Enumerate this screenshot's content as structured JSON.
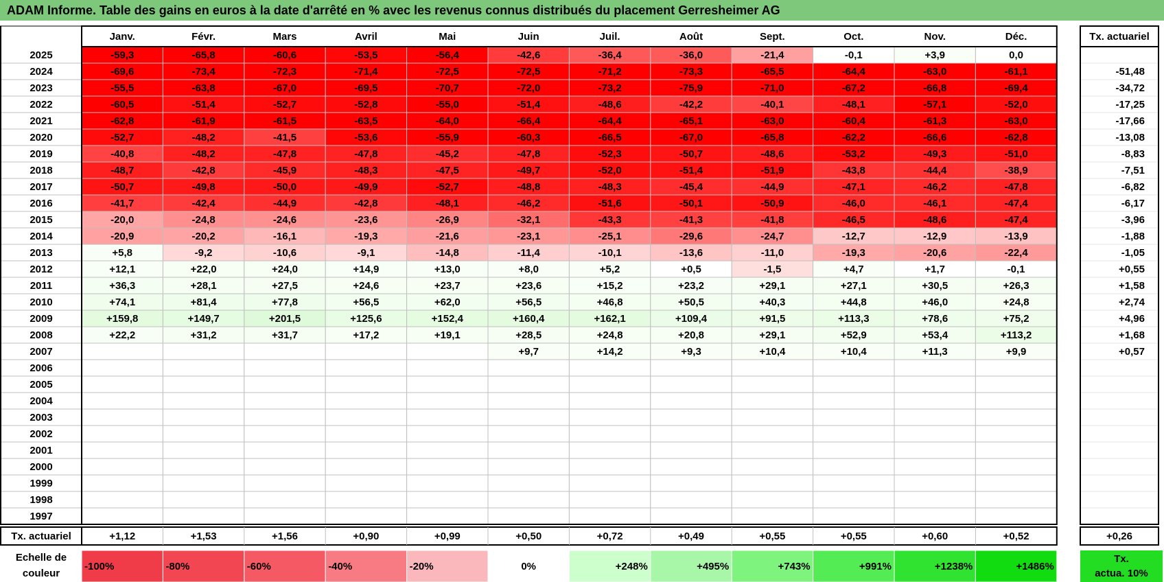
{
  "title": "ADAM Informe. Table des gains en euros à la date d'arrêté en % avec les revenus connus distribués du placement Gerresheimer AG",
  "chart_data": {
    "type": "heatmap",
    "title": "ADAM Informe. Table des gains en euros à la date d'arrêté en % avec les revenus connus distribués du placement Gerresheimer AG",
    "columns": [
      "Janv.",
      "Févr.",
      "Mars",
      "Avril",
      "Mai",
      "Juin",
      "Juil.",
      "Août",
      "Sept.",
      "Oct.",
      "Nov.",
      "Déc."
    ],
    "tx_header": "Tx. actuariel",
    "rows": [
      {
        "year": "2025",
        "values": [
          "-59,3",
          "-65,8",
          "-60,6",
          "-53,5",
          "-56,4",
          "-42,6",
          "-36,4",
          "-36,0",
          "-21,4",
          "-0,1",
          "+3,9",
          "0,0"
        ],
        "tx": ""
      },
      {
        "year": "2024",
        "values": [
          "-69,6",
          "-73,4",
          "-72,3",
          "-71,4",
          "-72,5",
          "-72,5",
          "-71,2",
          "-73,3",
          "-65,5",
          "-64,4",
          "-63,0",
          "-61,1"
        ],
        "tx": "-51,48"
      },
      {
        "year": "2023",
        "values": [
          "-55,5",
          "-63,8",
          "-67,0",
          "-69,5",
          "-70,7",
          "-72,0",
          "-73,2",
          "-75,9",
          "-71,0",
          "-67,2",
          "-66,8",
          "-69,4"
        ],
        "tx": "-34,72"
      },
      {
        "year": "2022",
        "values": [
          "-60,5",
          "-51,4",
          "-52,7",
          "-52,8",
          "-55,0",
          "-51,4",
          "-48,6",
          "-42,2",
          "-40,1",
          "-48,1",
          "-57,1",
          "-52,0"
        ],
        "tx": "-17,25"
      },
      {
        "year": "2021",
        "values": [
          "-62,8",
          "-61,9",
          "-61,5",
          "-63,5",
          "-64,0",
          "-66,4",
          "-64,4",
          "-65,1",
          "-63,0",
          "-60,4",
          "-61,3",
          "-63,0"
        ],
        "tx": "-17,66"
      },
      {
        "year": "2020",
        "values": [
          "-52,7",
          "-48,2",
          "-41,5",
          "-53,6",
          "-55,9",
          "-60,3",
          "-66,5",
          "-67,0",
          "-65,8",
          "-62,2",
          "-66,6",
          "-62,8"
        ],
        "tx": "-13,08"
      },
      {
        "year": "2019",
        "values": [
          "-40,8",
          "-48,2",
          "-47,8",
          "-47,8",
          "-45,2",
          "-47,8",
          "-52,3",
          "-50,7",
          "-48,6",
          "-53,2",
          "-49,3",
          "-51,0"
        ],
        "tx": "-8,83"
      },
      {
        "year": "2018",
        "values": [
          "-48,7",
          "-42,8",
          "-45,9",
          "-48,3",
          "-47,5",
          "-49,7",
          "-52,0",
          "-51,4",
          "-51,9",
          "-43,8",
          "-44,4",
          "-38,9"
        ],
        "tx": "-7,51"
      },
      {
        "year": "2017",
        "values": [
          "-50,7",
          "-49,8",
          "-50,0",
          "-49,9",
          "-52,7",
          "-48,8",
          "-48,3",
          "-45,4",
          "-44,9",
          "-47,1",
          "-46,2",
          "-47,8"
        ],
        "tx": "-6,82"
      },
      {
        "year": "2016",
        "values": [
          "-41,7",
          "-42,4",
          "-44,9",
          "-42,8",
          "-48,1",
          "-46,2",
          "-51,6",
          "-50,1",
          "-50,9",
          "-46,0",
          "-46,1",
          "-47,4"
        ],
        "tx": "-6,17"
      },
      {
        "year": "2015",
        "values": [
          "-20,0",
          "-24,8",
          "-24,6",
          "-23,6",
          "-26,9",
          "-32,1",
          "-43,3",
          "-41,3",
          "-41,8",
          "-46,5",
          "-48,6",
          "-47,4"
        ],
        "tx": "-3,96"
      },
      {
        "year": "2014",
        "values": [
          "-20,9",
          "-20,2",
          "-16,1",
          "-19,3",
          "-21,6",
          "-23,1",
          "-25,1",
          "-29,6",
          "-24,7",
          "-12,7",
          "-12,9",
          "-13,9"
        ],
        "tx": "-1,88"
      },
      {
        "year": "2013",
        "values": [
          "+5,8",
          "-9,2",
          "-10,6",
          "-9,1",
          "-14,8",
          "-11,4",
          "-10,1",
          "-13,6",
          "-11,0",
          "-19,3",
          "-20,6",
          "-22,4"
        ],
        "tx": "-1,05"
      },
      {
        "year": "2012",
        "values": [
          "+12,1",
          "+22,0",
          "+24,0",
          "+14,9",
          "+13,0",
          "+8,0",
          "+5,2",
          "+0,5",
          "-1,5",
          "+4,7",
          "+1,7",
          "-0,1"
        ],
        "tx": "+0,55"
      },
      {
        "year": "2011",
        "values": [
          "+36,3",
          "+28,1",
          "+27,5",
          "+24,6",
          "+23,7",
          "+23,6",
          "+15,2",
          "+23,2",
          "+29,1",
          "+27,1",
          "+30,5",
          "+26,3"
        ],
        "tx": "+1,58"
      },
      {
        "year": "2010",
        "values": [
          "+74,1",
          "+81,4",
          "+77,8",
          "+56,5",
          "+62,0",
          "+56,5",
          "+46,8",
          "+50,5",
          "+40,3",
          "+44,8",
          "+46,0",
          "+24,8"
        ],
        "tx": "+2,74"
      },
      {
        "year": "2009",
        "values": [
          "+159,8",
          "+149,7",
          "+201,5",
          "+125,6",
          "+152,4",
          "+160,4",
          "+162,1",
          "+109,4",
          "+91,5",
          "+113,3",
          "+78,6",
          "+75,2"
        ],
        "tx": "+4,96"
      },
      {
        "year": "2008",
        "values": [
          "+22,2",
          "+31,2",
          "+31,7",
          "+17,2",
          "+19,1",
          "+28,5",
          "+24,8",
          "+20,8",
          "+29,1",
          "+52,9",
          "+53,4",
          "+113,2"
        ],
        "tx": "+1,68"
      },
      {
        "year": "2007",
        "values": [
          "",
          "",
          "",
          "",
          "",
          "+9,7",
          "+14,2",
          "+9,3",
          "+10,4",
          "+10,4",
          "+11,3",
          "+9,9"
        ],
        "tx": "+0,57"
      },
      {
        "year": "2006",
        "values": [
          "",
          "",
          "",
          "",
          "",
          "",
          "",
          "",
          "",
          "",
          "",
          ""
        ],
        "tx": ""
      },
      {
        "year": "2005",
        "values": [
          "",
          "",
          "",
          "",
          "",
          "",
          "",
          "",
          "",
          "",
          "",
          ""
        ],
        "tx": ""
      },
      {
        "year": "2004",
        "values": [
          "",
          "",
          "",
          "",
          "",
          "",
          "",
          "",
          "",
          "",
          "",
          ""
        ],
        "tx": ""
      },
      {
        "year": "2003",
        "values": [
          "",
          "",
          "",
          "",
          "",
          "",
          "",
          "",
          "",
          "",
          "",
          ""
        ],
        "tx": ""
      },
      {
        "year": "2002",
        "values": [
          "",
          "",
          "",
          "",
          "",
          "",
          "",
          "",
          "",
          "",
          "",
          ""
        ],
        "tx": ""
      },
      {
        "year": "2001",
        "values": [
          "",
          "",
          "",
          "",
          "",
          "",
          "",
          "",
          "",
          "",
          "",
          ""
        ],
        "tx": ""
      },
      {
        "year": "2000",
        "values": [
          "",
          "",
          "",
          "",
          "",
          "",
          "",
          "",
          "",
          "",
          "",
          ""
        ],
        "tx": ""
      },
      {
        "year": "1999",
        "values": [
          "",
          "",
          "",
          "",
          "",
          "",
          "",
          "",
          "",
          "",
          "",
          ""
        ],
        "tx": ""
      },
      {
        "year": "1998",
        "values": [
          "",
          "",
          "",
          "",
          "",
          "",
          "",
          "",
          "",
          "",
          "",
          ""
        ],
        "tx": ""
      },
      {
        "year": "1997",
        "values": [
          "",
          "",
          "",
          "",
          "",
          "",
          "",
          "",
          "",
          "",
          "",
          ""
        ],
        "tx": ""
      }
    ],
    "footer": {
      "label": "Tx. actuariel",
      "values": [
        "+1,12",
        "+1,53",
        "+1,56",
        "+0,90",
        "+0,99",
        "+0,50",
        "+0,72",
        "+0,49",
        "+0,55",
        "+0,55",
        "+0,60",
        "+0,52"
      ],
      "tx": "+0,26"
    },
    "legend": {
      "label_line1": "Echelle de",
      "label_line2": "couleur",
      "items": [
        {
          "text": "-100%",
          "color": "#f03c48",
          "align": "left"
        },
        {
          "text": "-80%",
          "color": "#f24652",
          "align": "left"
        },
        {
          "text": "-60%",
          "color": "#f55a64",
          "align": "left"
        },
        {
          "text": "-40%",
          "color": "#f87a82",
          "align": "left"
        },
        {
          "text": "-20%",
          "color": "#fbb8bc",
          "align": "left"
        },
        {
          "text": "0%",
          "color": "#ffffff",
          "align": "center"
        },
        {
          "text": "+248%",
          "color": "#ccffcc",
          "align": "right"
        },
        {
          "text": "+495%",
          "color": "#a8f7a8",
          "align": "right"
        },
        {
          "text": "+743%",
          "color": "#7ef37e",
          "align": "right"
        },
        {
          "text": "+991%",
          "color": "#54ec54",
          "align": "right"
        },
        {
          "text": "+1238%",
          "color": "#30e330",
          "align": "right"
        },
        {
          "text": "+1486%",
          "color": "#10dc10",
          "align": "right"
        }
      ],
      "tx_line1": "Tx.",
      "tx_line2": "actua. 10%",
      "tx_color": "#22dd22"
    },
    "colors": {
      "title_bar": "#7dc87b",
      "neg_strong": "#ff0000",
      "neg_light": "#ffdede",
      "pos_light": "#f2fcef",
      "grid": "#bfbfbf"
    }
  }
}
